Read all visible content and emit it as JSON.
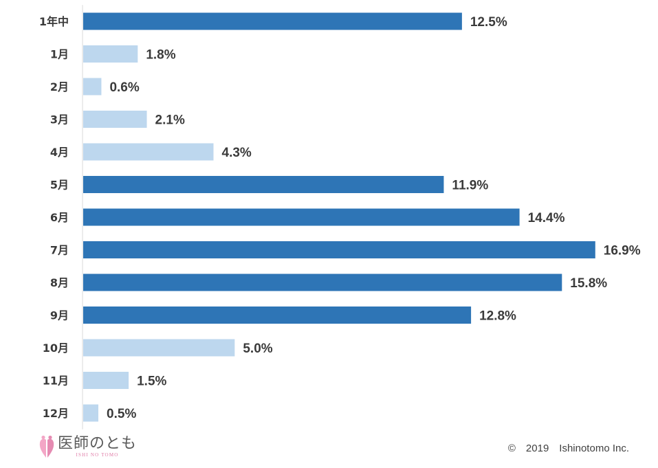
{
  "chart_data": {
    "type": "bar",
    "orientation": "horizontal",
    "categories": [
      "1年中",
      "1月",
      "2月",
      "3月",
      "4月",
      "5月",
      "6月",
      "7月",
      "8月",
      "9月",
      "10月",
      "11月",
      "12月"
    ],
    "values": [
      12.5,
      1.8,
      0.6,
      2.1,
      4.3,
      11.9,
      14.4,
      16.9,
      15.8,
      12.8,
      5.0,
      1.5,
      0.5
    ],
    "value_labels": [
      "12.5%",
      "1.8%",
      "0.6%",
      "2.1%",
      "4.3%",
      "11.9%",
      "14.4%",
      "16.9%",
      "15.8%",
      "12.8%",
      "5.0%",
      "1.5%",
      "0.5%"
    ],
    "highlighted": [
      true,
      false,
      false,
      false,
      false,
      true,
      true,
      true,
      true,
      true,
      false,
      false,
      false
    ],
    "xlim": [
      0,
      17.2
    ],
    "grid": false,
    "colors": {
      "highlight": "#2e75b6",
      "normal": "#bdd7ee",
      "axis": "#d9d9d9"
    }
  },
  "footer": {
    "logo_text": "医師のとも",
    "logo_subtext": "ISHI NO TOMO",
    "copyright": "©　2019　Ishinotomo Inc."
  }
}
